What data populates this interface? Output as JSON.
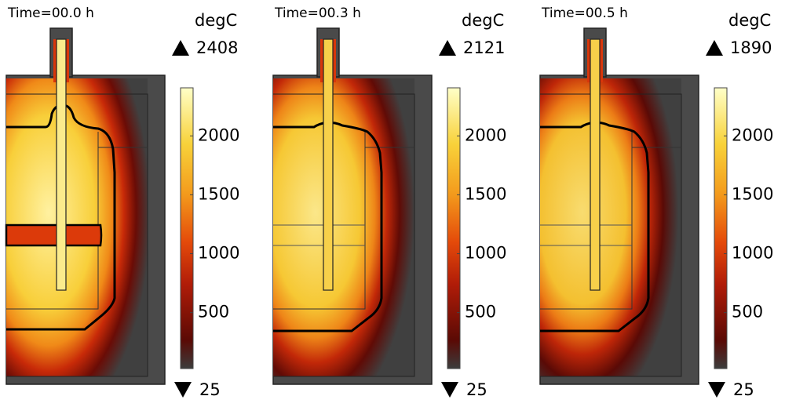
{
  "panels": [
    {
      "time": "Time=00.0 h",
      "unit": "degC",
      "max": 2408,
      "min": 25,
      "ticks": [
        500,
        1000,
        1500,
        2000
      ]
    },
    {
      "time": "Time=00.3 h",
      "unit": "degC",
      "max": 2121,
      "min": 25,
      "ticks": [
        500,
        1000,
        1500,
        2000
      ]
    },
    {
      "time": "Time=00.5 h",
      "unit": "degC",
      "max": 1890,
      "min": 25,
      "ticks": [
        500,
        1000,
        1500,
        2000
      ]
    }
  ]
}
